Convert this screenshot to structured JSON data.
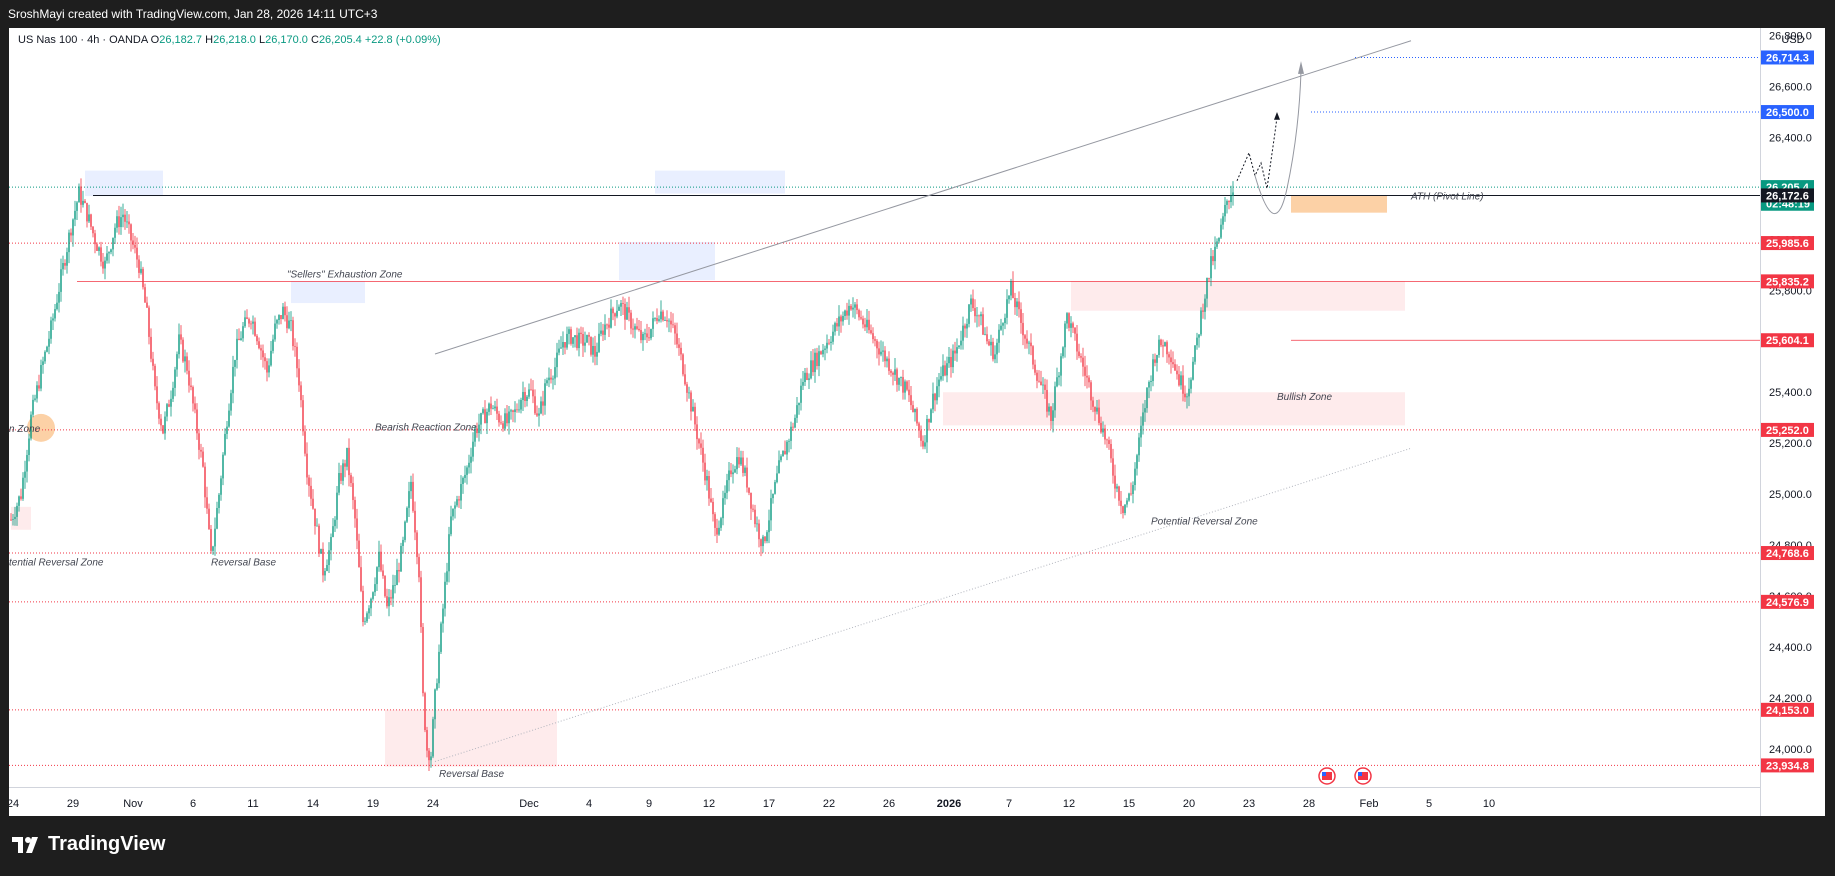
{
  "header": {
    "title": "SroshMayi created with TradingView.com, Jan 28, 2026 14:11 UTC+3"
  },
  "legend": {
    "symbol": "US Nas 100 · 4h · OANDA",
    "open_label": "O",
    "open": "26,182.7",
    "high_label": "H",
    "high": "26,218.0",
    "low_label": "L",
    "low": "26,170.0",
    "close_label": "C",
    "close": "26,205.4",
    "change": "+22.8 (+0.09%)"
  },
  "price_axis": {
    "currency": "USD",
    "ticks": [
      "26,800.0",
      "26,600.0",
      "26,400.0",
      "26,200.0",
      "26,000.0",
      "25,800.0",
      "25,600.0",
      "25,400.0",
      "25,200.0",
      "25,000.0",
      "24,800.0",
      "24,600.0",
      "24,400.0",
      "24,200.0",
      "24,000.0"
    ],
    "tick_values": [
      26800,
      26600,
      26400,
      26200,
      26000,
      25800,
      25600,
      25400,
      25200,
      25000,
      24800,
      24600,
      24400,
      24200,
      24000
    ],
    "badges": [
      {
        "label": "26,714.3",
        "value": 26714.3,
        "color": "#2962ff"
      },
      {
        "label": "26,500.0",
        "value": 26500.0,
        "color": "#2962ff"
      },
      {
        "label": "26,205.4",
        "value": 26205.4,
        "color": "#089981"
      },
      {
        "label": "02:48:19",
        "value": 26140,
        "color": "#089981"
      },
      {
        "label": "26,172.6",
        "value": 26172.6,
        "color": "#131722"
      },
      {
        "label": "25,985.6",
        "value": 25985.6,
        "color": "#f23645"
      },
      {
        "label": "25,835.2",
        "value": 25835.2,
        "color": "#f23645"
      },
      {
        "label": "25,604.1",
        "value": 25604.1,
        "color": "#f23645"
      },
      {
        "label": "25,252.0",
        "value": 25252.0,
        "color": "#f23645"
      },
      {
        "label": "24,768.6",
        "value": 24768.6,
        "color": "#f23645"
      },
      {
        "label": "24,576.9",
        "value": 24576.9,
        "color": "#f23645"
      },
      {
        "label": "24,153.0",
        "value": 24153.0,
        "color": "#f23645"
      },
      {
        "label": "23,934.8",
        "value": 23934.8,
        "color": "#f23645"
      }
    ]
  },
  "time_axis": {
    "labels": [
      {
        "t": "24",
        "idx": 1
      },
      {
        "t": "29",
        "idx": 31
      },
      {
        "t": "Nov",
        "idx": 61
      },
      {
        "t": "6",
        "idx": 91
      },
      {
        "t": "11",
        "idx": 121
      },
      {
        "t": "14",
        "idx": 151
      },
      {
        "t": "19",
        "idx": 181
      },
      {
        "t": "24",
        "idx": 211
      },
      {
        "t": "Dec",
        "idx": 259
      },
      {
        "t": "4",
        "idx": 289
      },
      {
        "t": "9",
        "idx": 319
      },
      {
        "t": "12",
        "idx": 349
      },
      {
        "t": "17",
        "idx": 379
      },
      {
        "t": "22",
        "idx": 409
      },
      {
        "t": "26",
        "idx": 439
      },
      {
        "t": "2026",
        "idx": 469
      },
      {
        "t": "7",
        "idx": 499
      },
      {
        "t": "12",
        "idx": 529
      },
      {
        "t": "15",
        "idx": 559
      },
      {
        "t": "20",
        "idx": 589
      },
      {
        "t": "23",
        "idx": 619
      },
      {
        "t": "28",
        "idx": 649
      },
      {
        "t": "Feb",
        "idx": 679
      },
      {
        "t": "5",
        "idx": 709
      },
      {
        "t": "10",
        "idx": 739
      }
    ]
  },
  "annotations": {
    "ath_label": "ATH (Pivot Line)",
    "sellers_zone": "\"Sellers\" Exhaustion Zone",
    "bearish_zone": "Bearish Reaction Zone",
    "bullish_zone": "Bullish Zone",
    "potential_reversal_right": "Potential Reversal Zone",
    "potential_reversal_left": "tential Reversal Zone",
    "zone_left": "n Zone",
    "reversal_base_1": "Reversal Base",
    "reversal_base_2": "Reversal Base"
  },
  "chart_data": {
    "type": "candlestick",
    "title": "US Nas 100 · 4h · OANDA",
    "ylim": [
      23850,
      26830
    ],
    "currency": "USD",
    "grid": false,
    "levels": [
      {
        "name": "ATH (Pivot Line)",
        "value": 26172.6
      },
      {
        "value": 25985.6
      },
      {
        "value": 25835.2
      },
      {
        "value": 25604.1
      },
      {
        "value": 25252.0
      },
      {
        "value": 24768.6
      },
      {
        "value": 24576.9
      },
      {
        "value": 24153.0
      },
      {
        "value": 23934.8
      },
      {
        "value": 26714.3
      },
      {
        "value": 26500.0
      }
    ],
    "anchors": [
      [
        0,
        24900
      ],
      [
        5,
        25000
      ],
      [
        10,
        25300
      ],
      [
        15,
        25480
      ],
      [
        20,
        25650
      ],
      [
        25,
        25850
      ],
      [
        30,
        26050
      ],
      [
        34,
        26180
      ],
      [
        38,
        26100
      ],
      [
        42,
        26000
      ],
      [
        47,
        25900
      ],
      [
        52,
        26050
      ],
      [
        56,
        26100
      ],
      [
        60,
        26000
      ],
      [
        64,
        25900
      ],
      [
        68,
        25700
      ],
      [
        72,
        25400
      ],
      [
        76,
        25250
      ],
      [
        80,
        25400
      ],
      [
        84,
        25600
      ],
      [
        88,
        25500
      ],
      [
        92,
        25300
      ],
      [
        96,
        25100
      ],
      [
        100,
        24750
      ],
      [
        104,
        25000
      ],
      [
        108,
        25300
      ],
      [
        112,
        25550
      ],
      [
        116,
        25650
      ],
      [
        120,
        25700
      ],
      [
        124,
        25600
      ],
      [
        128,
        25480
      ],
      [
        132,
        25650
      ],
      [
        136,
        25720
      ],
      [
        140,
        25650
      ],
      [
        144,
        25450
      ],
      [
        148,
        25100
      ],
      [
        152,
        24900
      ],
      [
        156,
        24700
      ],
      [
        160,
        24800
      ],
      [
        164,
        25050
      ],
      [
        168,
        25150
      ],
      [
        172,
        24900
      ],
      [
        176,
        24500
      ],
      [
        180,
        24600
      ],
      [
        184,
        24750
      ],
      [
        188,
        24550
      ],
      [
        192,
        24650
      ],
      [
        196,
        24800
      ],
      [
        200,
        25050
      ],
      [
        204,
        24700
      ],
      [
        206,
        24200
      ],
      [
        208,
        24000
      ],
      [
        210,
        23980
      ],
      [
        212,
        24200
      ],
      [
        216,
        24550
      ],
      [
        220,
        24900
      ],
      [
        224,
        25000
      ],
      [
        228,
        25100
      ],
      [
        232,
        25250
      ],
      [
        236,
        25300
      ],
      [
        240,
        25350
      ],
      [
        244,
        25300
      ],
      [
        248,
        25280
      ],
      [
        252,
        25320
      ],
      [
        256,
        25400
      ],
      [
        260,
        25400
      ],
      [
        264,
        25300
      ],
      [
        268,
        25450
      ],
      [
        272,
        25500
      ],
      [
        276,
        25600
      ],
      [
        280,
        25620
      ],
      [
        284,
        25600
      ],
      [
        288,
        25600
      ],
      [
        292,
        25550
      ],
      [
        296,
        25650
      ],
      [
        300,
        25700
      ],
      [
        304,
        25750
      ],
      [
        308,
        25700
      ],
      [
        312,
        25650
      ],
      [
        316,
        25600
      ],
      [
        320,
        25650
      ],
      [
        324,
        25720
      ],
      [
        328,
        25700
      ],
      [
        332,
        25620
      ],
      [
        336,
        25500
      ],
      [
        340,
        25350
      ],
      [
        344,
        25200
      ],
      [
        348,
        25050
      ],
      [
        352,
        24850
      ],
      [
        356,
        24950
      ],
      [
        360,
        25100
      ],
      [
        364,
        25150
      ],
      [
        368,
        25050
      ],
      [
        372,
        24900
      ],
      [
        376,
        24800
      ],
      [
        380,
        24950
      ],
      [
        384,
        25100
      ],
      [
        388,
        25200
      ],
      [
        392,
        25300
      ],
      [
        396,
        25450
      ],
      [
        400,
        25500
      ],
      [
        404,
        25550
      ],
      [
        408,
        25600
      ],
      [
        412,
        25650
      ],
      [
        416,
        25700
      ],
      [
        420,
        25750
      ],
      [
        424,
        25700
      ],
      [
        428,
        25650
      ],
      [
        432,
        25600
      ],
      [
        436,
        25550
      ],
      [
        440,
        25500
      ],
      [
        444,
        25450
      ],
      [
        448,
        25400
      ],
      [
        452,
        25300
      ],
      [
        456,
        25200
      ],
      [
        460,
        25350
      ],
      [
        464,
        25450
      ],
      [
        468,
        25500
      ],
      [
        472,
        25550
      ],
      [
        476,
        25650
      ],
      [
        480,
        25750
      ],
      [
        484,
        25700
      ],
      [
        488,
        25600
      ],
      [
        492,
        25550
      ],
      [
        496,
        25700
      ],
      [
        500,
        25800
      ],
      [
        504,
        25700
      ],
      [
        508,
        25600
      ],
      [
        512,
        25500
      ],
      [
        516,
        25400
      ],
      [
        520,
        25300
      ],
      [
        524,
        25500
      ],
      [
        528,
        25700
      ],
      [
        532,
        25600
      ],
      [
        536,
        25500
      ],
      [
        540,
        25400
      ],
      [
        544,
        25300
      ],
      [
        548,
        25200
      ],
      [
        552,
        25050
      ],
      [
        556,
        24950
      ],
      [
        560,
        25000
      ],
      [
        564,
        25200
      ],
      [
        568,
        25400
      ],
      [
        572,
        25550
      ],
      [
        576,
        25600
      ],
      [
        580,
        25550
      ],
      [
        584,
        25450
      ],
      [
        588,
        25400
      ],
      [
        592,
        25550
      ],
      [
        596,
        25750
      ],
      [
        600,
        25900
      ],
      [
        604,
        26000
      ],
      [
        608,
        26150
      ],
      [
        611,
        26205
      ]
    ]
  }
}
